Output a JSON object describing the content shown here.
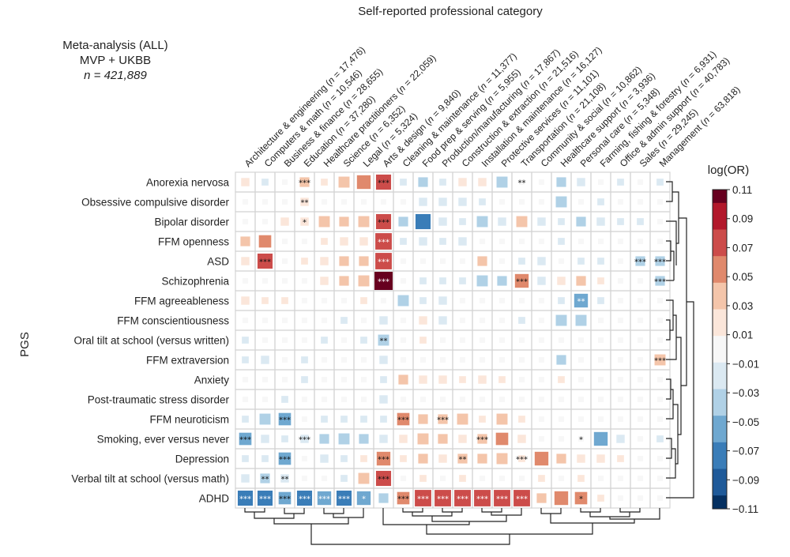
{
  "chart_data": {
    "type": "heatmap",
    "title": "Self-reported professional category",
    "ylabel": "PGS",
    "note_lines": [
      "Meta-analysis (ALL)",
      "MVP + UKBB"
    ],
    "note_n": "n = 421,889",
    "colorbar": {
      "label": "log(OR)",
      "ticks": [
        "0.11",
        "0.09",
        "0.07",
        "0.05",
        "0.03",
        "0.01",
        "−0.01",
        "−0.03",
        "−0.05",
        "−0.07",
        "−0.09",
        "−0.11"
      ],
      "range": [
        -0.11,
        0.11
      ],
      "colors": [
        "#67001f",
        "#b2182b",
        "#cc4c4a",
        "#e0896c",
        "#f4c5aa",
        "#fbe6da",
        "#f7f7f7",
        "#dbe9f2",
        "#b0d1e6",
        "#6fa8d0",
        "#3a7db8",
        "#1f5a99",
        "#053061"
      ]
    },
    "columns": [
      "Architecture & engineering (n = 17,476)",
      "Computers & math (n = 10,546)",
      "Business & finance (n = 28,655)",
      "Education (n = 37,280)",
      "Healthcare practitioners (n = 22,059)",
      "Science (n = 6,352)",
      "Legal (n = 5,324)",
      "Arts & design (n = 9,840)",
      "Cleaning & maintenance (n = 11,377)",
      "Food prep & serving (n = 5,955)",
      "Production/manufacturing (n = 17,867)",
      "Construction & extraction (n = 21,516)",
      "Installation & maintenance (n = 16,127)",
      "Protective services (n = 11,101)",
      "Transportation (n = 21,108)",
      "Community & social (n = 10,862)",
      "Healthcare support (n = 3,936)",
      "Personal care (n = 5,348)",
      "Farming, fishing & forestry (n = 6,931)",
      "Office & admin support (n = 40,783)",
      "Sales (n = 29,245)",
      "Management (n = 63,818)"
    ],
    "rows": [
      "Anorexia nervosa",
      "Obsessive compulsive disorder",
      "Bipolar disorder",
      "FFM openness",
      "ASD",
      "Schizophrenia",
      "FFM agreeableness",
      "FFM conscientiousness",
      "Oral tilt at school (versus written)",
      "FFM extraversion",
      "Anxiety",
      "Post-traumatic stress disorder",
      "FFM neuroticism",
      "Smoking, ever versus never",
      "Depression",
      "Verbal tilt at school (versus math)",
      "ADHD"
    ],
    "values": [
      [
        0.02,
        -0.01,
        0.0,
        0.03,
        0.01,
        0.04,
        0.06,
        0.07,
        -0.01,
        -0.03,
        -0.01,
        0.02,
        0.02,
        -0.04,
        0.0,
        0.0,
        -0.03,
        -0.02,
        0.0,
        -0.01,
        0.0,
        -0.01
      ],
      [
        0.0,
        0.0,
        0.0,
        0.02,
        0.0,
        0.0,
        0.0,
        0.0,
        0.0,
        -0.02,
        -0.02,
        -0.02,
        -0.01,
        0.0,
        0.0,
        0.0,
        -0.04,
        0.0,
        -0.01,
        0.0,
        0.0,
        0.0
      ],
      [
        0.0,
        0.0,
        0.02,
        0.02,
        0.04,
        0.03,
        0.04,
        0.07,
        -0.03,
        -0.07,
        -0.02,
        -0.01,
        -0.04,
        -0.02,
        0.04,
        -0.02,
        -0.01,
        -0.03,
        -0.02,
        -0.01,
        -0.01,
        0.0
      ],
      [
        0.03,
        0.05,
        0.0,
        0.0,
        0.01,
        0.02,
        0.02,
        0.08,
        -0.01,
        -0.02,
        -0.01,
        -0.02,
        0.0,
        0.0,
        0.0,
        0.0,
        -0.01,
        0.0,
        0.0,
        0.0,
        0.0,
        0.0
      ],
      [
        0.02,
        0.07,
        0.0,
        0.01,
        0.02,
        0.03,
        0.03,
        0.08,
        0.0,
        0.0,
        0.0,
        0.0,
        0.03,
        0.0,
        -0.01,
        -0.02,
        0.0,
        -0.01,
        -0.01,
        0.0,
        -0.03,
        -0.03
      ],
      [
        0.0,
        0.0,
        0.0,
        0.0,
        0.02,
        0.03,
        0.04,
        0.11,
        0.0,
        -0.01,
        -0.01,
        -0.01,
        -0.04,
        -0.03,
        0.06,
        -0.02,
        0.02,
        0.03,
        0.01,
        0.0,
        0.0,
        -0.03
      ],
      [
        0.02,
        0.01,
        0.01,
        0.0,
        0.0,
        0.0,
        0.01,
        0.0,
        -0.04,
        -0.01,
        -0.02,
        0.0,
        0.0,
        0.0,
        0.0,
        0.0,
        -0.01,
        -0.06,
        -0.01,
        0.0,
        0.0,
        0.0
      ],
      [
        0.0,
        0.0,
        0.0,
        0.0,
        0.0,
        -0.01,
        0.0,
        -0.02,
        0.0,
        0.02,
        -0.02,
        0.0,
        0.0,
        0.0,
        -0.01,
        0.0,
        -0.04,
        -0.04,
        0.0,
        0.0,
        0.0,
        0.0
      ],
      [
        -0.01,
        0.0,
        0.0,
        0.0,
        -0.01,
        0.0,
        -0.01,
        -0.04,
        0.0,
        0.01,
        0.0,
        0.0,
        0.0,
        0.0,
        0.0,
        0.0,
        0.0,
        0.0,
        0.0,
        0.0,
        0.0,
        0.0
      ],
      [
        -0.01,
        -0.02,
        0.0,
        -0.01,
        0.0,
        0.0,
        0.0,
        -0.02,
        0.0,
        0.0,
        0.0,
        0.0,
        0.0,
        0.0,
        0.0,
        0.0,
        -0.03,
        0.0,
        0.0,
        0.0,
        0.0,
        0.04
      ],
      [
        0.0,
        0.0,
        0.0,
        -0.01,
        0.0,
        0.0,
        0.0,
        -0.01,
        0.03,
        0.02,
        0.02,
        0.01,
        0.02,
        0.01,
        0.0,
        0.0,
        0.01,
        0.0,
        0.0,
        0.0,
        0.0,
        0.0
      ],
      [
        0.0,
        0.0,
        -0.01,
        0.0,
        0.0,
        0.0,
        0.0,
        -0.02,
        0.0,
        0.0,
        0.0,
        0.0,
        0.0,
        0.0,
        0.0,
        0.0,
        0.0,
        0.0,
        0.0,
        0.0,
        0.0,
        0.0
      ],
      [
        -0.01,
        -0.04,
        -0.05,
        0.0,
        -0.01,
        -0.01,
        -0.01,
        -0.01,
        0.05,
        0.03,
        0.03,
        0.04,
        0.01,
        0.04,
        0.01,
        0.0,
        0.0,
        0.0,
        0.0,
        0.0,
        0.0,
        0.0
      ],
      [
        -0.05,
        -0.02,
        -0.01,
        -0.02,
        -0.03,
        -0.04,
        -0.03,
        -0.02,
        0.02,
        0.04,
        0.03,
        0.02,
        0.03,
        0.05,
        0.02,
        0.0,
        0.0,
        0.0,
        -0.06,
        -0.02,
        0.0,
        -0.01
      ],
      [
        -0.01,
        -0.01,
        -0.05,
        0.0,
        -0.02,
        -0.01,
        0.01,
        0.06,
        0.01,
        0.03,
        0.02,
        0.03,
        0.03,
        0.04,
        0.01,
        0.06,
        0.03,
        0.02,
        0.02,
        0.01,
        0.0,
        0.0
      ],
      [
        -0.02,
        -0.03,
        -0.02,
        0.0,
        0.0,
        -0.01,
        0.04,
        0.07,
        0.0,
        0.01,
        0.0,
        0.01,
        0.0,
        0.0,
        0.0,
        0.01,
        0.0,
        0.01,
        0.0,
        0.0,
        0.0,
        0.0
      ],
      [
        -0.07,
        -0.07,
        -0.05,
        -0.07,
        -0.06,
        -0.07,
        -0.06,
        -0.03,
        0.05,
        0.08,
        0.08,
        0.08,
        0.08,
        0.08,
        0.08,
        0.03,
        0.06,
        0.05,
        0.01,
        0.0,
        0.0,
        0.0
      ]
    ],
    "stars": [
      [
        "",
        "",
        "",
        "***",
        "",
        "",
        "",
        "***",
        "",
        "",
        "",
        "",
        "",
        "",
        "**",
        "",
        "",
        "",
        "",
        "",
        "",
        ""
      ],
      [
        "",
        "",
        "",
        "**",
        "",
        "",
        "",
        "",
        "",
        "",
        "",
        "",
        "",
        "",
        "",
        "",
        "",
        "",
        "",
        "",
        "",
        ""
      ],
      [
        "",
        "",
        "",
        "*",
        "",
        "",
        "",
        "***",
        "",
        "",
        "",
        "",
        "",
        "",
        "",
        "",
        "",
        "",
        "",
        "",
        "",
        ""
      ],
      [
        "",
        "",
        "",
        "",
        "",
        "",
        "",
        "***",
        "",
        "",
        "",
        "",
        "",
        "",
        "",
        "",
        "",
        "",
        "",
        "",
        "",
        ""
      ],
      [
        "",
        "***",
        "",
        "",
        "",
        "",
        "",
        "***",
        "",
        "",
        "",
        "",
        "",
        "",
        "",
        "",
        "",
        "",
        "",
        "",
        "***",
        "***"
      ],
      [
        "",
        "",
        "",
        "",
        "",
        "",
        "",
        "***",
        "",
        "",
        "",
        "",
        "",
        "",
        "***",
        "",
        "",
        "",
        "",
        "",
        "",
        "***"
      ],
      [
        "",
        "",
        "",
        "",
        "",
        "",
        "",
        "",
        "",
        "",
        "",
        "",
        "",
        "",
        "",
        "",
        "",
        "**",
        "",
        "",
        "",
        ""
      ],
      [
        "",
        "",
        "",
        "",
        "",
        "",
        "",
        "",
        "",
        "",
        "",
        "",
        "",
        "",
        "",
        "",
        "",
        "",
        "",
        "",
        "",
        ""
      ],
      [
        "",
        "",
        "",
        "",
        "",
        "",
        "",
        "**",
        "",
        "",
        "",
        "",
        "",
        "",
        "",
        "",
        "",
        "",
        "",
        "",
        "",
        ""
      ],
      [
        "",
        "",
        "",
        "",
        "",
        "",
        "",
        "",
        "",
        "",
        "",
        "",
        "",
        "",
        "",
        "",
        "",
        "",
        "",
        "",
        "",
        "***"
      ],
      [
        "",
        "",
        "",
        "",
        "",
        "",
        "",
        "",
        "",
        "",
        "",
        "",
        "",
        "",
        "",
        "",
        "",
        "",
        "",
        "",
        "",
        ""
      ],
      [
        "",
        "",
        "",
        "",
        "",
        "",
        "",
        "",
        "",
        "",
        "",
        "",
        "",
        "",
        "",
        "",
        "",
        "",
        "",
        "",
        "",
        ""
      ],
      [
        "",
        "",
        "***",
        "",
        "",
        "",
        "",
        "",
        "***",
        "",
        "***",
        "",
        "",
        "",
        "",
        "",
        "",
        "",
        "",
        "",
        "",
        ""
      ],
      [
        "***",
        "",
        "",
        "***",
        "",
        "",
        "",
        "",
        "",
        "",
        "",
        "",
        "***",
        "",
        "",
        "",
        "",
        "*",
        "",
        "",
        "",
        ""
      ],
      [
        "",
        "",
        "***",
        "",
        "",
        "",
        "",
        "***",
        "",
        "",
        "",
        "**",
        "",
        "",
        "***",
        "",
        "",
        "",
        "",
        "",
        "",
        ""
      ],
      [
        "",
        "**",
        "**",
        "",
        "",
        "",
        "",
        "***",
        "",
        "",
        "",
        "",
        "",
        "",
        "",
        "",
        "",
        "",
        "",
        "",
        "",
        ""
      ],
      [
        "***",
        "***",
        "***",
        "***",
        "***",
        "***",
        "*",
        "",
        "***",
        "***",
        "***",
        "***",
        "***",
        "***",
        "***",
        "",
        "",
        "*",
        "",
        "",
        "",
        ""
      ]
    ]
  }
}
